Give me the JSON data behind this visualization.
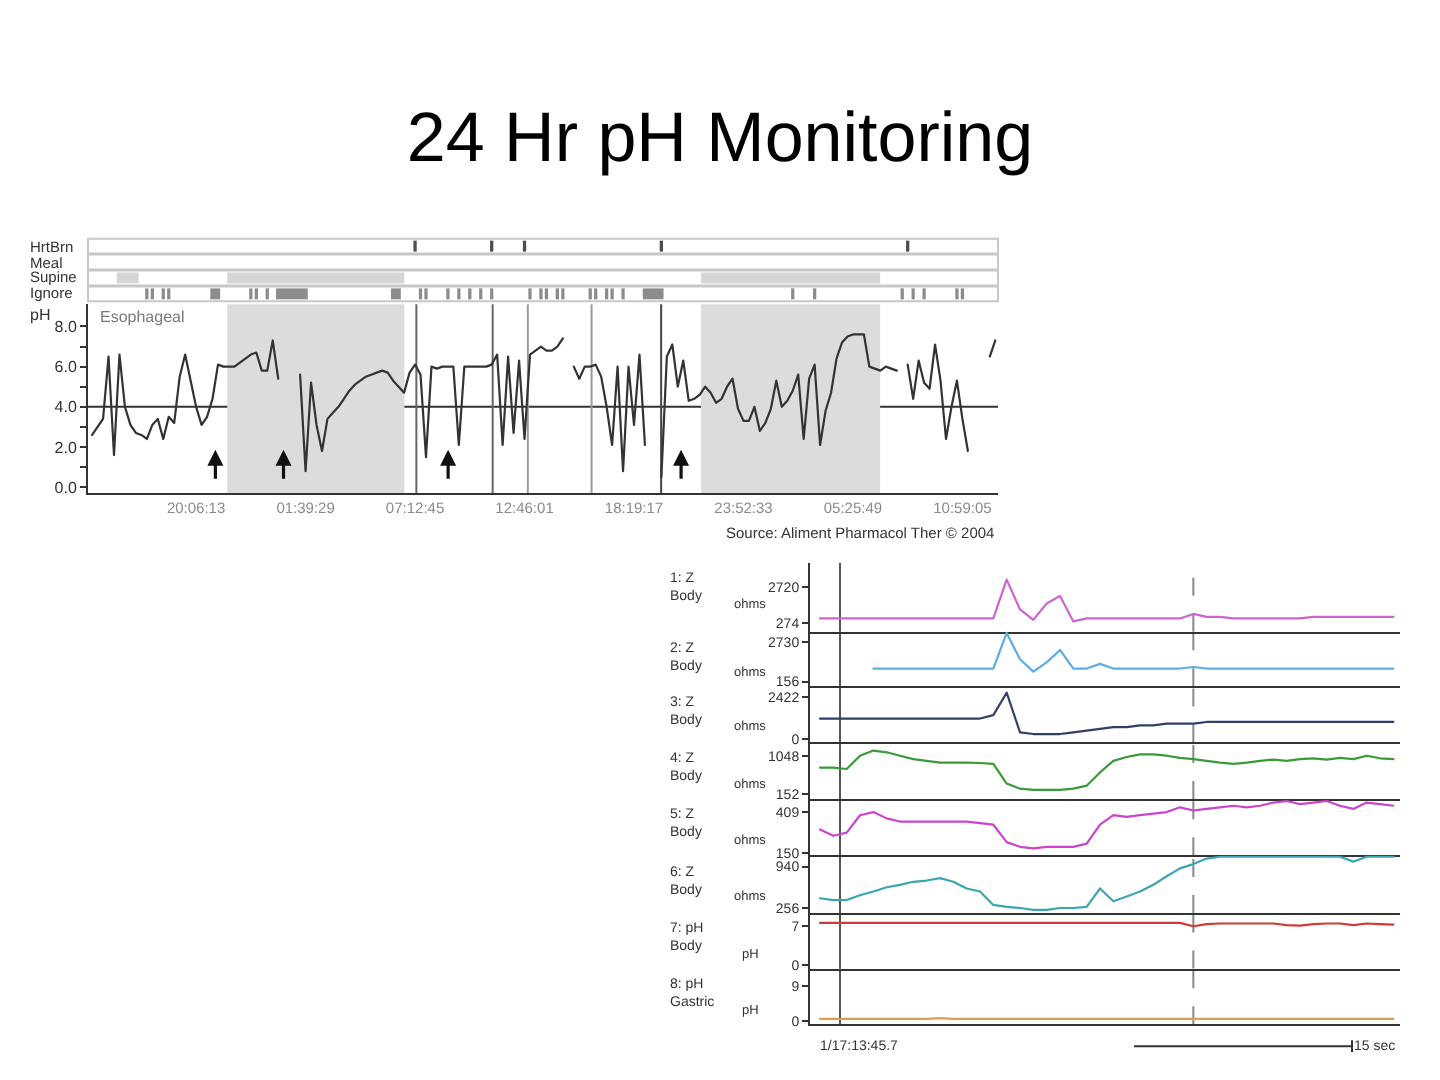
{
  "chart_data": [
    {
      "type": "line",
      "title": "24 Hr pH Monitoring",
      "ylabel": "pH",
      "annotations": [
        "Esophageal",
        "Source: Aliment Pharmacol Ther © 2004",
        "HrtBrn",
        "Meal",
        "Supine",
        "Ignore"
      ],
      "categories": [
        null,
        null,
        null,
        null,
        null,
        null,
        null,
        null,
        null,
        null,
        null,
        null,
        null,
        null,
        null,
        null,
        null,
        null,
        null,
        "20:06:13",
        null,
        null,
        null,
        null,
        null,
        null,
        null,
        null,
        null,
        null,
        null,
        null,
        null,
        null,
        null,
        null,
        null,
        null,
        null,
        "01:39:29",
        null,
        null,
        null,
        null,
        null,
        null,
        null,
        null,
        null,
        null,
        null,
        null,
        null,
        null,
        null,
        null,
        null,
        null,
        null,
        "07:12:45",
        null,
        null,
        null,
        null,
        null,
        null,
        null,
        null,
        null,
        null,
        null,
        null,
        null,
        null,
        null,
        null,
        null,
        null,
        null,
        "12:46:01",
        null,
        null,
        null,
        null,
        null,
        null,
        null,
        null,
        null,
        null,
        null,
        null,
        null,
        null,
        null,
        null,
        null,
        null,
        null,
        "18:19:17",
        null,
        null,
        null,
        null,
        null,
        null,
        null,
        null,
        null,
        null,
        null,
        null,
        null,
        null,
        null,
        null,
        null,
        null,
        null,
        "23:52:33",
        null,
        null,
        null,
        null,
        null,
        null,
        null,
        null,
        null,
        null,
        null,
        null,
        null,
        null,
        null,
        null,
        null,
        null,
        null,
        "05:25:49",
        null,
        null,
        null,
        null,
        null,
        null,
        null,
        null,
        null,
        null,
        null,
        null,
        null,
        null,
        null,
        null,
        null,
        null,
        null,
        "10:59:05",
        null,
        null,
        null,
        null,
        null,
        null
      ],
      "series": [
        {
          "color": "#333333",
          "values": [
            2.6,
            3.0,
            3.4,
            6.5,
            1.6,
            6.6,
            4.0,
            3.1,
            2.7,
            2.6,
            2.4,
            3.1,
            3.4,
            2.4,
            3.5,
            3.2,
            5.5,
            6.6,
            5.3,
            4.0,
            3.1,
            3.5,
            4.4,
            6.1,
            6.0,
            6.0,
            6.0,
            6.2,
            6.4,
            6.6,
            6.7,
            5.8,
            5.8,
            7.3,
            5.4,
            null,
            null,
            null,
            5.6,
            0.8,
            5.2,
            3.1,
            1.8,
            3.4,
            3.7,
            4.0,
            4.4,
            4.8,
            5.1,
            5.3,
            5.5,
            5.6,
            5.7,
            5.8,
            5.7,
            5.3,
            5.0,
            4.7,
            5.7,
            6.1,
            5.6,
            1.5,
            6.0,
            5.9,
            6.0,
            6.0,
            6.0,
            2.1,
            6.0,
            6.0,
            6.0,
            6.0,
            6.0,
            6.1,
            6.6,
            2.1,
            6.5,
            2.7,
            6.3,
            2.4,
            6.6,
            6.8,
            7.0,
            6.8,
            6.8,
            7.0,
            7.4,
            null,
            6.0,
            5.4,
            6.0,
            6.0,
            6.1,
            5.5,
            4.0,
            2.1,
            6.0,
            0.8,
            6.0,
            3.1,
            6.6,
            2.1,
            null,
            null,
            0.5,
            6.5,
            7.1,
            5.0,
            6.3,
            4.3,
            4.4,
            4.6,
            5.0,
            4.7,
            4.2,
            4.4,
            5.0,
            5.4,
            3.9,
            3.3,
            3.3,
            4.0,
            2.8,
            3.2,
            3.9,
            5.3,
            4.0,
            4.3,
            4.8,
            5.6,
            2.4,
            5.4,
            6.1,
            2.1,
            3.8,
            4.7,
            6.4,
            7.2,
            7.5,
            7.6,
            7.6,
            7.6,
            6.0,
            5.9,
            5.8,
            6.0,
            5.9,
            5.8,
            null,
            6.1,
            4.4,
            6.3,
            5.2,
            4.9,
            7.1,
            5.3,
            2.4,
            4.0,
            5.3,
            3.4,
            1.8,
            null,
            null,
            null,
            6.5,
            7.3
          ]
        }
      ],
      "ylim": [
        -0.3,
        9.1
      ],
      "yticks": [
        {
          "value": 0,
          "label": "0.0"
        },
        {
          "value": 1,
          "label": null
        },
        {
          "value": 2,
          "label": "2.0"
        },
        {
          "value": 3,
          "label": null
        },
        {
          "value": 4,
          "label": "4.0"
        },
        {
          "value": 5,
          "label": null
        },
        {
          "value": 6,
          "label": "6.0"
        },
        {
          "value": 7,
          "label": null
        },
        {
          "value": 8,
          "label": "8.0"
        }
      ],
      "ref_lines": [
        {
          "axis": "y",
          "value": 4,
          "color": "#333333"
        }
      ]
    },
    {
      "type": "line",
      "ylabel": "1: Z\nBody",
      "annotations": [
        "ohms"
      ],
      "categories": [
        null,
        null,
        null,
        null,
        null,
        null,
        null,
        null,
        null,
        null,
        null,
        null,
        null,
        null,
        null,
        null,
        null,
        null,
        null,
        null,
        null,
        null,
        null,
        null,
        null,
        null,
        null,
        null,
        null,
        null,
        null,
        null,
        null,
        null,
        null,
        null,
        null,
        null,
        null,
        null,
        null,
        null,
        null,
        null
      ],
      "series": [
        {
          "color": "#cc66cc",
          "values": [
            600,
            600,
            600,
            600,
            600,
            600,
            600,
            600,
            600,
            600,
            600,
            600,
            600,
            600,
            3200,
            1200,
            500,
            1600,
            2100,
            400,
            600,
            600,
            600,
            600,
            600,
            600,
            600,
            600,
            900,
            700,
            700,
            600,
            600,
            600,
            600,
            600,
            600,
            700,
            700,
            700,
            700,
            700,
            700,
            700
          ]
        }
      ],
      "ylim": [
        -300,
        4320
      ],
      "yticks": [
        274,
        2720
      ],
      "tick_labels": "y"
    },
    {
      "type": "line",
      "ylabel": "2: Z\nBody",
      "annotations": [
        "ohms"
      ],
      "categories": [
        null,
        null,
        null,
        null,
        null,
        null,
        null,
        null,
        null,
        null,
        null,
        null,
        null,
        null,
        null,
        null,
        null,
        null,
        null,
        null,
        null,
        null,
        null,
        null,
        null,
        null,
        null,
        null,
        null,
        null,
        null,
        null,
        null,
        null,
        null,
        null,
        null,
        null,
        null,
        null,
        null,
        null,
        null,
        null
      ],
      "series": [
        {
          "color": "#5aaee0",
          "values": [
            null,
            null,
            null,
            null,
            1000,
            1000,
            1000,
            1000,
            1000,
            1000,
            1000,
            1000,
            1000,
            1000,
            3300,
            1600,
            800,
            1400,
            2200,
            1000,
            1000,
            1300,
            1000,
            1000,
            1000,
            1000,
            1000,
            1000,
            1100,
            1000,
            1000,
            1000,
            1000,
            1000,
            1000,
            1000,
            1000,
            1000,
            1000,
            1000,
            1000,
            1000,
            1000,
            1000
          ]
        }
      ],
      "ylim": [
        -140,
        3370
      ],
      "yticks": [
        156,
        2730
      ],
      "tick_labels": "y"
    },
    {
      "type": "line",
      "ylabel": "3: Z\nBody",
      "annotations": [
        "ohms"
      ],
      "categories": [
        null,
        null,
        null,
        null,
        null,
        null,
        null,
        null,
        null,
        null,
        null,
        null,
        null,
        null,
        null,
        null,
        null,
        null,
        null,
        null,
        null,
        null,
        null,
        null,
        null,
        null,
        null,
        null,
        null,
        null,
        null,
        null,
        null,
        null,
        null,
        null,
        null,
        null,
        null,
        null,
        null,
        null,
        null,
        null
      ],
      "series": [
        {
          "color": "#2f3f66",
          "values": [
            1200,
            1200,
            1200,
            1200,
            1200,
            1200,
            1200,
            1200,
            1200,
            1200,
            1200,
            1200,
            1200,
            1400,
            2700,
            400,
            300,
            300,
            300,
            400,
            500,
            600,
            700,
            700,
            800,
            800,
            900,
            900,
            900,
            1000,
            1000,
            1000,
            1000,
            1000,
            1000,
            1000,
            1000,
            1000,
            1000,
            1000,
            1000,
            1000,
            1000,
            1000
          ]
        }
      ],
      "ylim": [
        -190,
        3080
      ],
      "yticks": [
        0,
        2422
      ],
      "tick_labels": "y"
    },
    {
      "type": "line",
      "ylabel": "4: Z\nBody",
      "annotations": [
        "ohms"
      ],
      "categories": [
        null,
        null,
        null,
        null,
        null,
        null,
        null,
        null,
        null,
        null,
        null,
        null,
        null,
        null,
        null,
        null,
        null,
        null,
        null,
        null,
        null,
        null,
        null,
        null,
        null,
        null,
        null,
        null,
        null,
        null,
        null,
        null,
        null,
        null,
        null,
        null,
        null,
        null,
        null,
        null,
        null,
        null,
        null,
        null
      ],
      "series": [
        {
          "color": "#3a9a3a",
          "values": [
            770,
            770,
            740,
            1050,
            1170,
            1130,
            1050,
            970,
            930,
            890,
            890,
            890,
            880,
            860,
            400,
            280,
            250,
            250,
            250,
            280,
            350,
            660,
            930,
            1020,
            1080,
            1080,
            1050,
            1000,
            970,
            930,
            890,
            860,
            890,
            930,
            960,
            930,
            970,
            990,
            960,
            1000,
            970,
            1050,
            990,
            970
          ]
        }
      ],
      "ylim": [
        40,
        1360
      ],
      "yticks": [
        152,
        1048
      ],
      "tick_labels": "y"
    },
    {
      "type": "line",
      "ylabel": "5: Z\nBody",
      "annotations": [
        "ohms"
      ],
      "categories": [
        null,
        null,
        null,
        null,
        null,
        null,
        null,
        null,
        null,
        null,
        null,
        null,
        null,
        null,
        null,
        null,
        null,
        null,
        null,
        null,
        null,
        null,
        null,
        null,
        null,
        null,
        null,
        null,
        null,
        null,
        null,
        null,
        null,
        null,
        null,
        null,
        null,
        null,
        null,
        null,
        null,
        null,
        null,
        null
      ],
      "series": [
        {
          "color": "#cc44cc",
          "values": [
            300,
            260,
            280,
            390,
            410,
            370,
            350,
            350,
            350,
            350,
            350,
            350,
            340,
            330,
            220,
            190,
            180,
            190,
            190,
            190,
            210,
            330,
            390,
            380,
            390,
            400,
            410,
            440,
            420,
            430,
            440,
            450,
            440,
            450,
            470,
            480,
            460,
            470,
            480,
            450,
            430,
            470,
            460,
            450
          ]
        }
      ],
      "ylim": [
        137,
        493
      ],
      "yticks": [
        150,
        409
      ],
      "tick_labels": "y"
    },
    {
      "type": "line",
      "ylabel": "6: Z\nBody",
      "annotations": [
        "ohms"
      ],
      "categories": [
        null,
        null,
        null,
        null,
        null,
        null,
        null,
        null,
        null,
        null,
        null,
        null,
        null,
        null,
        null,
        null,
        null,
        null,
        null,
        null,
        null,
        null,
        null,
        null,
        null,
        null,
        null,
        null,
        null,
        null,
        null,
        null,
        null,
        null,
        null,
        null,
        null,
        null,
        null,
        null,
        null,
        null,
        null,
        null
      ],
      "series": [
        {
          "color": "#3aa6b4",
          "values": [
            420,
            390,
            390,
            470,
            530,
            600,
            640,
            690,
            710,
            750,
            690,
            580,
            530,
            310,
            280,
            260,
            230,
            230,
            260,
            260,
            280,
            580,
            370,
            450,
            530,
            640,
            780,
            910,
            980,
            1070,
            1100,
            1100,
            1100,
            1100,
            1100,
            1100,
            1100,
            1100,
            1100,
            1100,
            1020,
            1100,
            1100,
            1100
          ]
        }
      ],
      "ylim": [
        180,
        1125
      ],
      "yticks": [
        256,
        940
      ],
      "tick_labels": "y"
    },
    {
      "type": "line",
      "ylabel": "7: pH\nBody",
      "annotations": [
        "pH"
      ],
      "categories": [
        null,
        null,
        null,
        null,
        null,
        null,
        null,
        null,
        null,
        null,
        null,
        null,
        null,
        null,
        null,
        null,
        null,
        null,
        null,
        null,
        null,
        null,
        null,
        null,
        null,
        null,
        null,
        null,
        null,
        null,
        null,
        null,
        null,
        null,
        null,
        null,
        null,
        null,
        null,
        null,
        null,
        null,
        null,
        null
      ],
      "series": [
        {
          "color": "#d03a3a",
          "values": [
            7.6,
            7.6,
            7.6,
            7.6,
            7.6,
            7.6,
            7.6,
            7.6,
            7.6,
            7.6,
            7.6,
            7.6,
            7.6,
            7.6,
            7.6,
            7.6,
            7.6,
            7.6,
            7.6,
            7.6,
            7.6,
            7.6,
            7.6,
            7.6,
            7.6,
            7.6,
            7.6,
            7.6,
            7.0,
            7.4,
            7.5,
            7.5,
            7.5,
            7.5,
            7.5,
            7.2,
            7.1,
            7.4,
            7.5,
            7.5,
            7.2,
            7.5,
            7.4,
            7.3
          ]
        }
      ],
      "ylim": [
        -0.6,
        9.4
      ],
      "yticks": [
        0,
        7
      ],
      "tick_labels": "y"
    },
    {
      "type": "line",
      "ylabel": "8: pH\nGastric",
      "annotations": [
        "pH",
        "1/17:13:45.7",
        "15 sec"
      ],
      "categories": [
        null,
        null,
        null,
        null,
        null,
        null,
        null,
        null,
        null,
        null,
        null,
        null,
        null,
        null,
        null,
        null,
        null,
        null,
        null,
        null,
        null,
        null,
        null,
        null,
        null,
        null,
        null,
        null,
        null,
        null,
        null,
        null,
        null,
        null,
        null,
        null,
        null,
        null,
        null,
        null,
        null,
        null,
        null,
        null
      ],
      "series": [
        {
          "color": "#e0a04a",
          "values": [
            0.5,
            0.5,
            0.5,
            0.5,
            0.5,
            0.5,
            0.5,
            0.5,
            0.5,
            0.7,
            0.5,
            0.5,
            0.5,
            0.5,
            0.5,
            0.5,
            0.5,
            0.5,
            0.5,
            0.5,
            0.5,
            0.5,
            0.5,
            0.5,
            0.5,
            0.5,
            0.5,
            0.5,
            0.5,
            0.5,
            0.5,
            0.5,
            0.5,
            0.5,
            0.5,
            0.5,
            0.5,
            0.5,
            0.5,
            0.5,
            0.5,
            0.5,
            0.5,
            0.5
          ]
        }
      ],
      "ylim": [
        -0.9,
        13.5
      ],
      "yticks": [
        0,
        9
      ],
      "tick_labels": "y"
    }
  ]
}
